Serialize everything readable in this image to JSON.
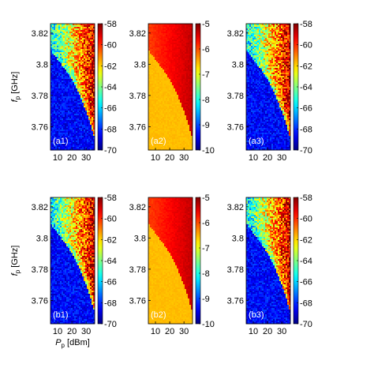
{
  "chart_data": {
    "type": "heatmap",
    "rows": [
      {
        "ylabel": "f",
        "ylabel_sub": "p",
        "ylabel_unit": " [GHz]",
        "xlabel": "",
        "xlabel_sub": "",
        "xlabel_unit": "",
        "panels": [
          {
            "label": "(a1)",
            "colormap": "jet",
            "clim": [
              -70,
              -58
            ],
            "colorbar_ticks": [
              "-58",
              "-60",
              "-62",
              "-64",
              "-66",
              "-68",
              "-70"
            ],
            "pattern": "snr"
          },
          {
            "label": "(a2)",
            "colormap": "jet",
            "clim": [
              -10,
              -5
            ],
            "colorbar_ticks": [
              "-5",
              "-6",
              "-7",
              "-8",
              "-9",
              "-10"
            ],
            "pattern": "level"
          },
          {
            "label": "(a3)",
            "colormap": "jet",
            "clim": [
              -70,
              -58
            ],
            "colorbar_ticks": [
              "-58",
              "-60",
              "-62",
              "-64",
              "-66",
              "-68",
              "-70"
            ],
            "pattern": "snr"
          }
        ]
      },
      {
        "ylabel": "f",
        "ylabel_sub": "p",
        "ylabel_unit": " [GHz]",
        "xlabel": "P",
        "xlabel_sub": "p",
        "xlabel_unit": " [dBm]",
        "panels": [
          {
            "label": "(b1)",
            "colormap": "jet",
            "clim": [
              -70,
              -58
            ],
            "colorbar_ticks": [
              "-58",
              "-60",
              "-62",
              "-64",
              "-66",
              "-68",
              "-70"
            ],
            "pattern": "snr"
          },
          {
            "label": "(b2)",
            "colormap": "jet",
            "clim": [
              -10,
              -5
            ],
            "colorbar_ticks": [
              "-5",
              "-6",
              "-7",
              "-8",
              "-9",
              "-10"
            ],
            "pattern": "level"
          },
          {
            "label": "(b3)",
            "colormap": "jet",
            "clim": [
              -70,
              -58
            ],
            "colorbar_ticks": [
              "-58",
              "-60",
              "-62",
              "-64",
              "-66",
              "-68",
              "-70"
            ],
            "pattern": "snr"
          }
        ]
      }
    ],
    "x_range": [
      5,
      36
    ],
    "y_range": [
      3.745,
      3.826
    ],
    "xticks": [
      10,
      20,
      30
    ],
    "xtick_labels": [
      "10",
      "20",
      "30"
    ],
    "yticks": [
      3.76,
      3.78,
      3.8,
      3.82
    ],
    "ytick_labels": [
      "3.76",
      "3.78",
      "3.8",
      "3.82"
    ],
    "boundary": [
      {
        "x": 5,
        "y": 3.809
      },
      {
        "x": 10,
        "y": 3.803
      },
      {
        "x": 15,
        "y": 3.797
      },
      {
        "x": 20,
        "y": 3.79
      },
      {
        "x": 25,
        "y": 3.781
      },
      {
        "x": 30,
        "y": 3.77
      },
      {
        "x": 33,
        "y": 3.762
      },
      {
        "x": 36,
        "y": 3.752
      }
    ]
  }
}
